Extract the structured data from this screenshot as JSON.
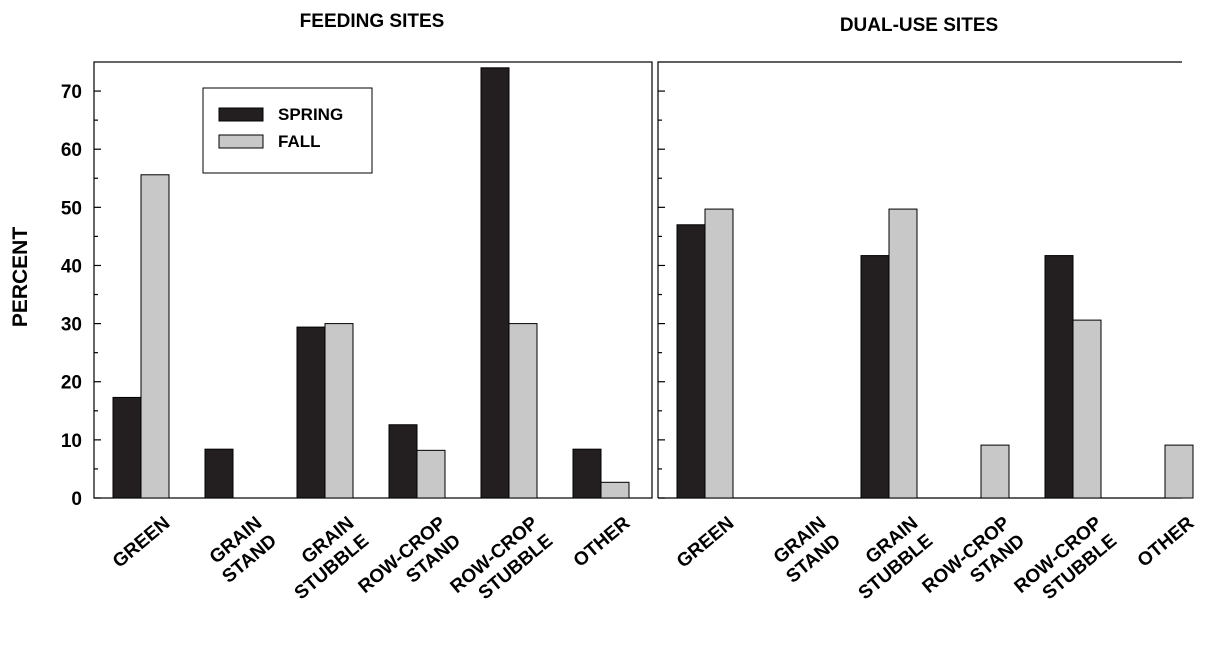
{
  "chart_data": [
    {
      "type": "bar",
      "title": "FEEDING SITES",
      "ylabel": "PERCENT",
      "xlabel": "",
      "ylim": [
        0,
        75
      ],
      "yticks": [
        0,
        10,
        20,
        30,
        40,
        50,
        60,
        70
      ],
      "categories": [
        [
          "GREEN"
        ],
        [
          "GRAIN",
          "STAND"
        ],
        [
          "GRAIN",
          "STUBBLE"
        ],
        [
          "ROW-CROP",
          "STAND"
        ],
        [
          "ROW-CROP",
          "STUBBLE"
        ],
        [
          "OTHER"
        ]
      ],
      "series": [
        {
          "name": "SPRING",
          "color": "#231f20",
          "values": [
            17.3,
            8.4,
            29.4,
            12.6,
            74.0,
            8.4
          ]
        },
        {
          "name": "FALL",
          "color": "#c8c8c8",
          "values": [
            55.6,
            0,
            30.0,
            8.2,
            30.0,
            2.7
          ]
        }
      ],
      "legend": "top-left-inside"
    },
    {
      "type": "bar",
      "title": "DUAL-USE SITES",
      "ylabel": "",
      "xlabel": "",
      "ylim": [
        0,
        75
      ],
      "categories": [
        [
          "GREEN"
        ],
        [
          "GRAIN",
          "STAND"
        ],
        [
          "GRAIN",
          "STUBBLE"
        ],
        [
          "ROW-CROP",
          "STAND"
        ],
        [
          "ROW-CROP",
          "STUBBLE"
        ],
        [
          "OTHER"
        ]
      ],
      "series": [
        {
          "name": "SPRING",
          "color": "#231f20",
          "values": [
            47.0,
            0,
            41.7,
            0,
            41.7,
            0
          ]
        },
        {
          "name": "FALL",
          "color": "#c8c8c8",
          "values": [
            49.7,
            0,
            49.7,
            9.1,
            30.6,
            9.1
          ]
        }
      ]
    }
  ]
}
